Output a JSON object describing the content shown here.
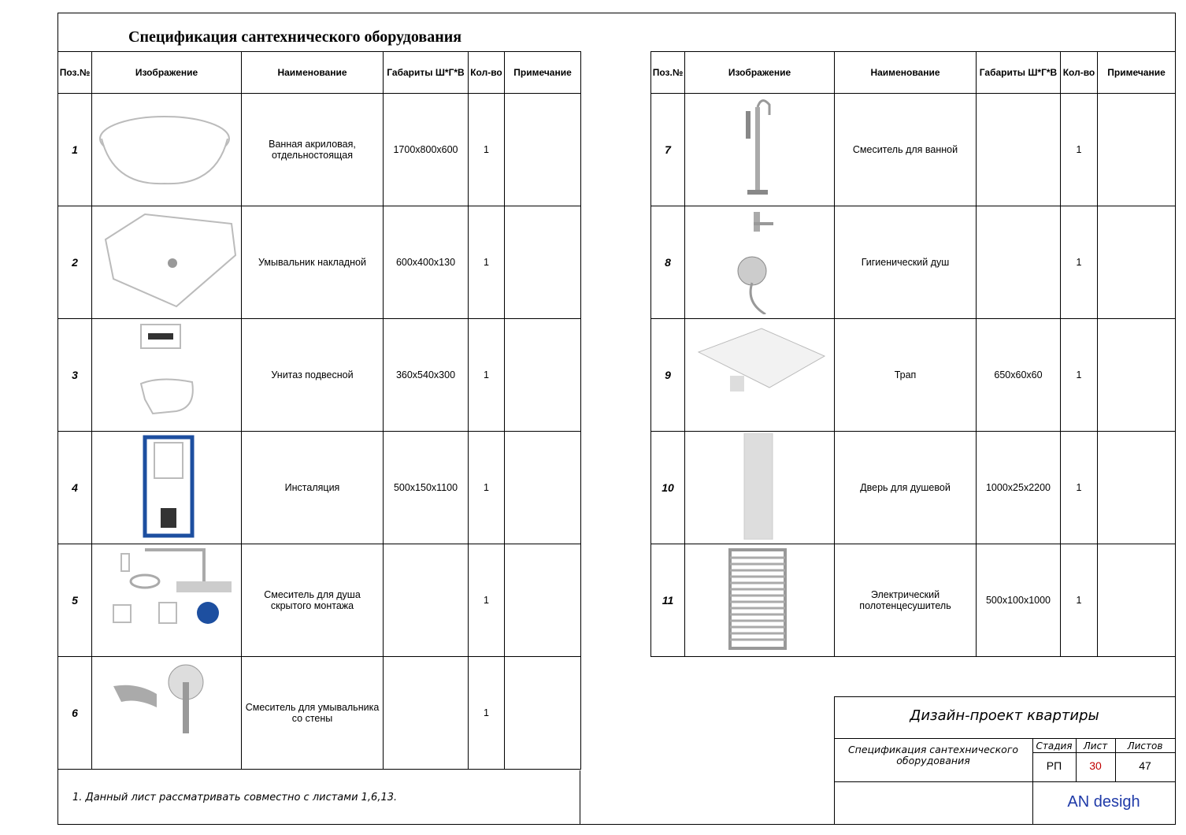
{
  "title": "Спецификация сантехнического оборудования",
  "headers": [
    "Поз.№",
    "Изображение",
    "Наименование",
    "Габариты Ш*Г*В",
    "Кол-во",
    "Примечание"
  ],
  "left_rows": [
    {
      "pos": "1",
      "name": "Ванная акриловая, отдельностоящая",
      "size": "1700x800x600",
      "qty": "1"
    },
    {
      "pos": "2",
      "name": "Умывальник  накладной",
      "size": "600x400x130",
      "qty": "1"
    },
    {
      "pos": "3",
      "name": "Унитаз подвесной",
      "size": "360x540x300",
      "qty": "1"
    },
    {
      "pos": "4",
      "name": "Инсталяция",
      "size": "500x150x1100",
      "qty": "1"
    },
    {
      "pos": "5",
      "name": "Смеситель для душа скрытого монтажа",
      "qty": "1"
    },
    {
      "pos": "6",
      "name": "Смеситель для умывальника со стены",
      "qty": "1"
    }
  ],
  "right_rows": [
    {
      "pos": "7",
      "name": "Смеситель для ванной",
      "qty": "1"
    },
    {
      "pos": "8",
      "name": "Гигиенический душ",
      "qty": "1"
    },
    {
      "pos": "9",
      "name": "Трап",
      "size": "650x60x60",
      "qty": "1"
    },
    {
      "pos": "10",
      "name": "Дверь для душевой",
      "size": "1000x25x2200",
      "qty": "1"
    },
    {
      "pos": "11",
      "name": "Электрический полотенцесушитель",
      "size": "500x100x1000",
      "qty": "1"
    }
  ],
  "note": "1. Данный лист рассматривать совместно с листами 1,6,13.",
  "stamp": {
    "project": "Дизайн-проект квартиры",
    "sheet_title": "Спецификация сантехнического оборудования",
    "labels": [
      "Стадия",
      "Лист",
      "Листов"
    ],
    "values": [
      "РП",
      "30",
      "47"
    ],
    "company": "AN desigh"
  }
}
